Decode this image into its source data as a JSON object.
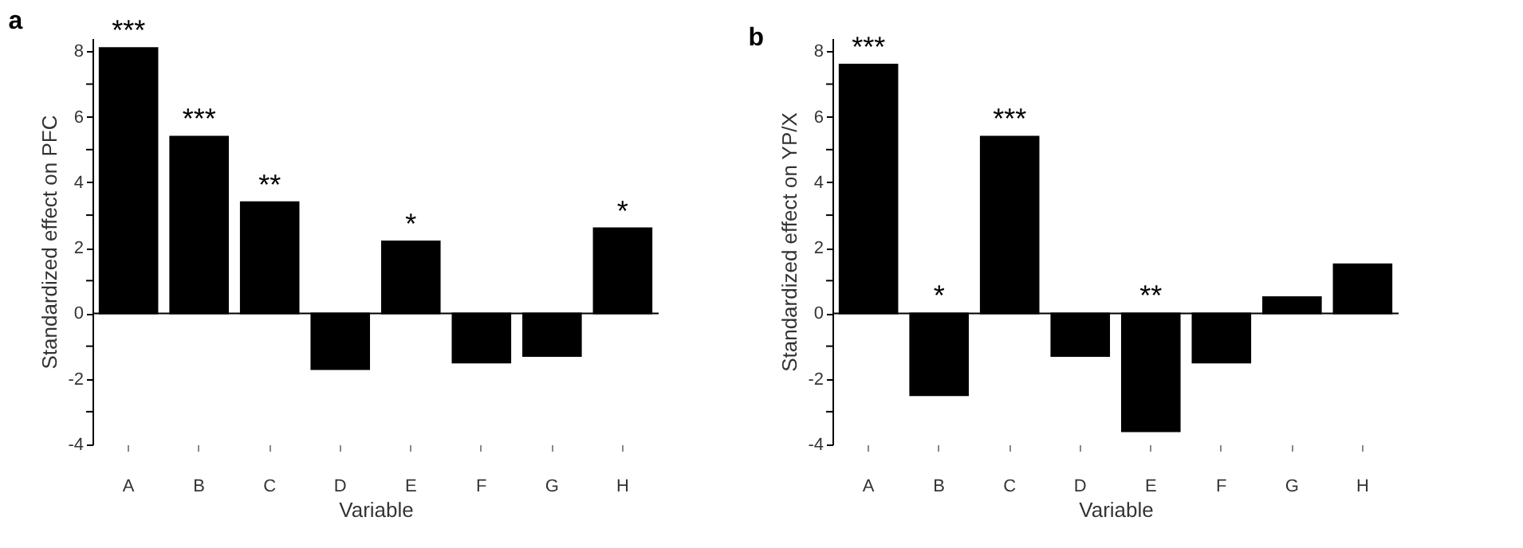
{
  "chart_data": [
    {
      "type": "bar",
      "title": "a",
      "xlabel": "Variable",
      "ylabel": "Standardized effect on PFC",
      "categories": [
        "A",
        "B",
        "C",
        "D",
        "E",
        "F",
        "G",
        "H"
      ],
      "values": [
        8.1,
        5.4,
        3.4,
        -1.7,
        2.2,
        -1.5,
        -1.3,
        2.6
      ],
      "color": "#000000",
      "ylim": [
        -4,
        8.4
      ],
      "yticks": [
        -4,
        {
          "value": -3,
          "label": null
        },
        -2,
        {
          "value": -1,
          "label": null
        },
        0,
        {
          "value": 1,
          "label": null
        },
        2,
        {
          "value": 3,
          "label": null
        },
        4,
        {
          "value": 5,
          "label": null
        },
        6,
        {
          "value": 7,
          "label": null
        },
        8
      ],
      "grid": false,
      "ref_lines": [
        {
          "axis": "y",
          "value": 0,
          "color": "#000000"
        }
      ],
      "annotations": [
        {
          "text": "***",
          "x": "A",
          "y": 8.1
        },
        {
          "text": "***",
          "x": "B",
          "y": 5.4
        },
        {
          "text": "**",
          "x": "C",
          "y": 3.4
        },
        {
          "text": "*",
          "x": "E",
          "y": 2.2
        },
        {
          "text": "*",
          "x": "H",
          "y": 2.6
        }
      ]
    },
    {
      "type": "bar",
      "title": "b",
      "xlabel": "Variable",
      "ylabel": "Standardized effect on YP/X",
      "categories": [
        "A",
        "B",
        "C",
        "D",
        "E",
        "F",
        "G",
        "H"
      ],
      "values": [
        7.6,
        -2.5,
        5.4,
        -1.3,
        -3.6,
        -1.5,
        0.5,
        1.5
      ],
      "color": "#000000",
      "ylim": [
        -4,
        8.4
      ],
      "yticks": [
        -4,
        {
          "value": -3,
          "label": null
        },
        -2,
        {
          "value": -1,
          "label": null
        },
        0,
        {
          "value": 1,
          "label": null
        },
        2,
        {
          "value": 3,
          "label": null
        },
        4,
        {
          "value": 5,
          "label": null
        },
        6,
        {
          "value": 7,
          "label": null
        },
        8
      ],
      "grid": false,
      "ref_lines": [
        {
          "axis": "y",
          "value": 0,
          "color": "#000000"
        }
      ],
      "annotations": [
        {
          "text": "***",
          "x": "A",
          "y": 7.6
        },
        {
          "text": "*",
          "x": "B",
          "y": 0
        },
        {
          "text": "***",
          "x": "C",
          "y": 5.4
        },
        {
          "text": "**",
          "x": "E",
          "y": 0
        }
      ]
    }
  ]
}
